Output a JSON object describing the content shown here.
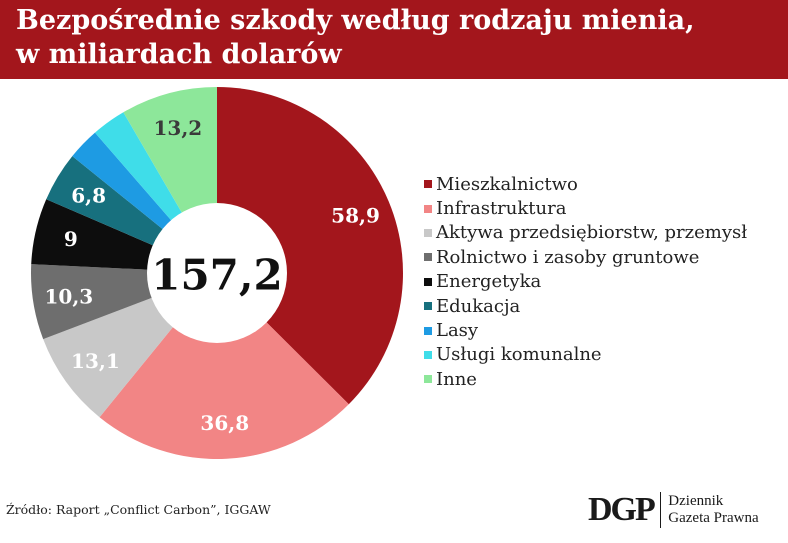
{
  "title_line1": "Bezpośrednie szkody według rodzaju mienia,",
  "title_line2": "w miliardach dolarów",
  "source": "Źródło: Raport „Conflict Carbon”, IGGAW",
  "logo": {
    "mark": "DGP",
    "line1": "Dziennik",
    "line2": "Gazeta Prawna"
  },
  "chart_data": {
    "type": "pie",
    "variant": "donut",
    "total_label": "157,2",
    "legend_position": "right",
    "slices": [
      {
        "label": "Mieszkalnictwo",
        "value": 58.9,
        "value_label": "58,9",
        "color": "#a3161c",
        "text_color": "#ffffff"
      },
      {
        "label": "Infrastruktura",
        "value": 36.8,
        "value_label": "36,8",
        "color": "#f28585",
        "text_color": "#ffffff"
      },
      {
        "label": "Aktywa przedsiębiorstw, przemysł",
        "value": 13.1,
        "value_label": "13,1",
        "color": "#c8c8c8",
        "text_color": "#ffffff"
      },
      {
        "label": "Rolnictwo i zasoby gruntowe",
        "value": 10.3,
        "value_label": "10,3",
        "color": "#6e6e6e",
        "text_color": "#ffffff"
      },
      {
        "label": "Energetyka",
        "value": 9,
        "value_label": "9",
        "color": "#0d0d0d",
        "text_color": "#ffffff"
      },
      {
        "label": "Edukacja",
        "value": 6.8,
        "value_label": "6,8",
        "color": "#17707e",
        "text_color": "#ffffff"
      },
      {
        "label": "Lasy",
        "value": 4.4,
        "value_label": "",
        "color": "#1e9be3",
        "text_color": "#ffffff"
      },
      {
        "label": "Usługi komunalne",
        "value": 4.7,
        "value_label": "",
        "color": "#3fdde9",
        "text_color": "#ffffff"
      },
      {
        "label": "Inne",
        "value": 13.2,
        "value_label": "13,2",
        "color": "#8de79a",
        "text_color": "#3a3a3a"
      }
    ]
  }
}
